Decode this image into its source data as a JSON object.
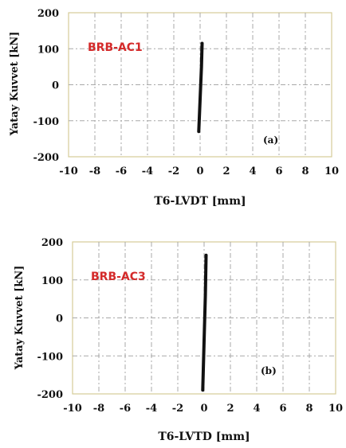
{
  "colors": {
    "frame": "#d6cc98",
    "grid": "#a8a8a8",
    "trace": "#111111",
    "specimen": "#d42a2a"
  },
  "chart_data": [
    {
      "type": "line",
      "label": "BRB-AC1",
      "panel": "(a)",
      "xlabel": "T6-LVDT [mm]",
      "ylabel": "Yatay Kuvvet [kN]",
      "xlim": [
        -10,
        10
      ],
      "ylim": [
        -200,
        200
      ],
      "xticks": [
        "-10",
        "-8",
        "-6",
        "-4",
        "-2",
        "0",
        "2",
        "4",
        "6",
        "8",
        "10"
      ],
      "yticks": [
        "200",
        "100",
        "0",
        "-100",
        "-200"
      ],
      "grid": true,
      "series": [
        {
          "x": [
            -0.1,
            0.0,
            0.1,
            0.15
          ],
          "y": [
            -130,
            -40,
            50,
            115
          ]
        }
      ]
    },
    {
      "type": "line",
      "label": "BRB-AC3",
      "panel": "(b)",
      "xlabel": "T6-LVTD [mm]",
      "ylabel": "Yatay Kuvvet [kN]",
      "xlim": [
        -10,
        10
      ],
      "ylim": [
        -200,
        200
      ],
      "xticks": [
        "-10",
        "-8",
        "-6",
        "-4",
        "-2",
        "0",
        "2",
        "4",
        "6",
        "8",
        "10"
      ],
      "yticks": [
        "200",
        "100",
        "0",
        "-100",
        "-200"
      ],
      "grid": true,
      "series": [
        {
          "x": [
            -0.1,
            0.0,
            0.1,
            0.15
          ],
          "y": [
            -190,
            -60,
            60,
            165
          ]
        }
      ]
    }
  ]
}
